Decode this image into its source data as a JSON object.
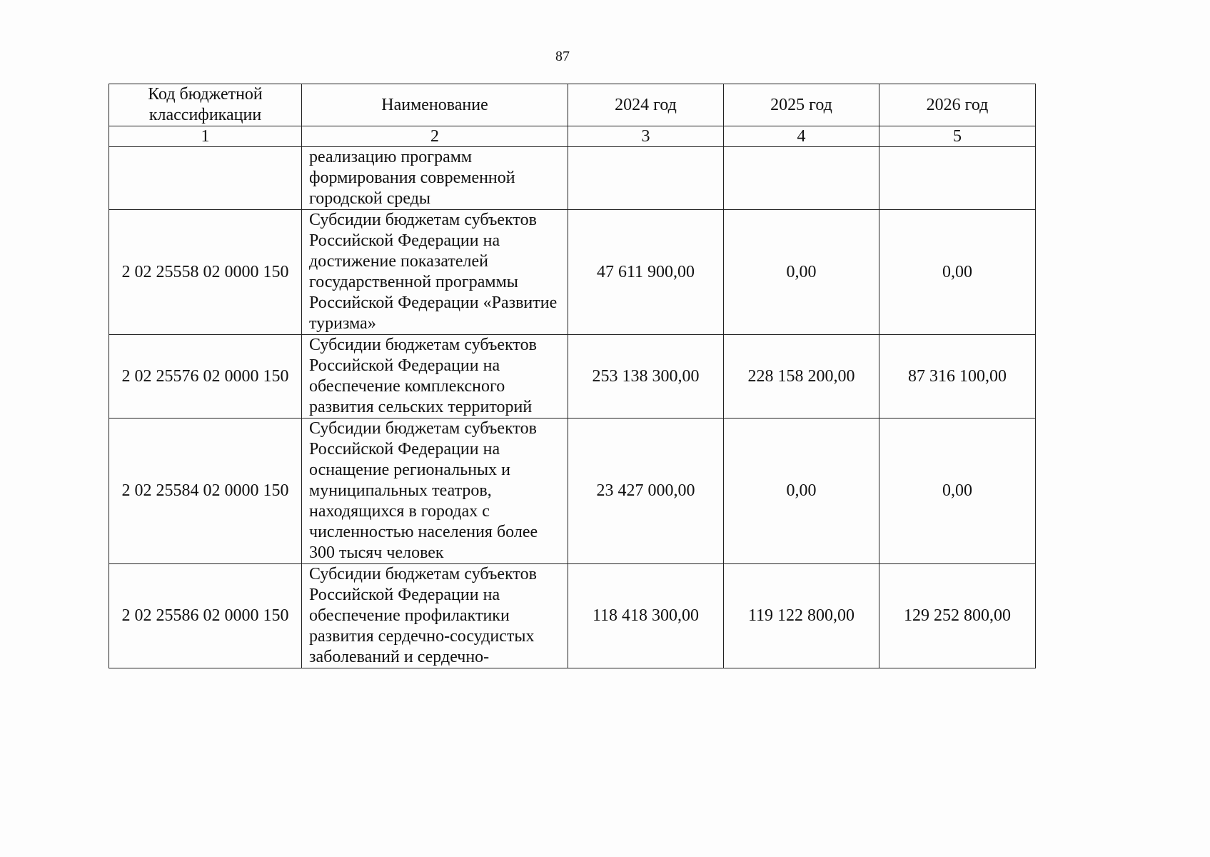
{
  "page_number": "87",
  "table": {
    "headers": [
      "Код бюджетной классификации",
      "Наименование",
      "2024 год",
      "2025 год",
      "2026 год"
    ],
    "column_numbers": [
      "1",
      "2",
      "3",
      "4",
      "5"
    ],
    "rows": [
      {
        "code": "",
        "name": "реализацию программ формирования современной городской среды",
        "y2024": "",
        "y2025": "",
        "y2026": ""
      },
      {
        "code": "2 02 25558 02 0000 150",
        "name": "Субсидии бюджетам субъектов Российской Федерации на достижение показателей государственной программы Российской Федерации «Развитие туризма»",
        "y2024": "47 611 900,00",
        "y2025": "0,00",
        "y2026": "0,00"
      },
      {
        "code": "2 02 25576 02 0000 150",
        "name": "Субсидии бюджетам субъектов Российской Федерации на обеспечение комплексного развития сельских территорий",
        "y2024": "253 138 300,00",
        "y2025": "228 158 200,00",
        "y2026": "87 316 100,00"
      },
      {
        "code": "2 02 25584 02 0000 150",
        "name": "Субсидии бюджетам субъектов Российской Федерации на оснащение региональных и муниципальных театров, находящихся в городах с численностью населения более 300 тысяч человек",
        "y2024": "23 427 000,00",
        "y2025": "0,00",
        "y2026": "0,00"
      },
      {
        "code": "2 02 25586 02 0000 150",
        "name": "Субсидии бюджетам субъектов Российской Федерации на обеспечение профилактики развития сердечно-сосудистых заболеваний и сердечно-",
        "y2024": "118 418 300,00",
        "y2025": "119 122 800,00",
        "y2026": "129 252 800,00"
      }
    ]
  }
}
